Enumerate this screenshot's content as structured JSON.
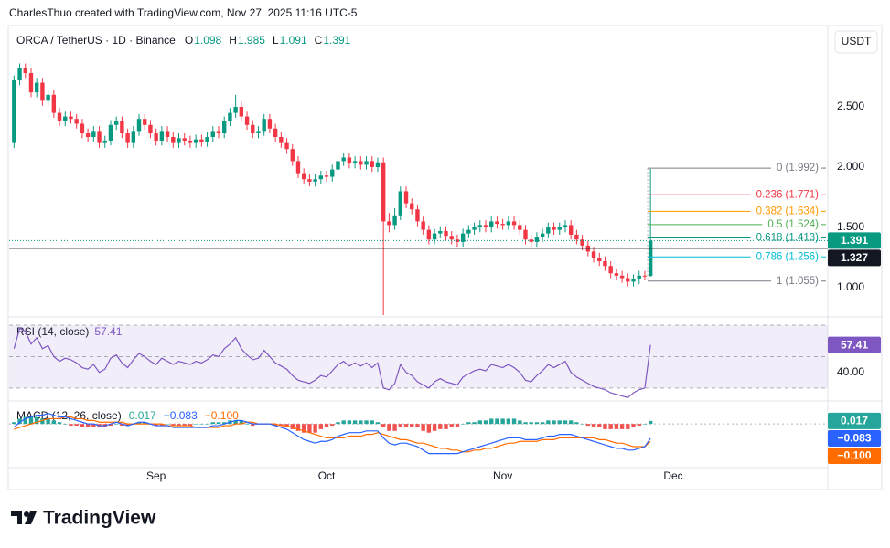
{
  "header": {
    "attribution": "CharlesThuo created with TradingView.com, Nov 27, 2025 11:16 UTC-5",
    "currency_button": "USDT"
  },
  "footer": {
    "brand": "TradingView"
  },
  "chart_data": [
    {
      "type": "candlestick",
      "title": "ORCA / TetherUS · 1D · Binance",
      "ohlc": [
        {
          "label": "O",
          "value": 1.098
        },
        {
          "label": "H",
          "value": 1.985
        },
        {
          "label": "L",
          "value": 1.091
        },
        {
          "label": "C",
          "value": 1.391
        }
      ],
      "up_color": "#089981",
      "down_color": "#f23645",
      "categories": [
        null,
        null,
        null,
        null,
        null,
        null,
        null,
        null,
        null,
        null,
        null,
        null,
        null,
        null,
        null,
        null,
        null,
        null,
        null,
        null,
        null,
        null,
        null,
        null,
        null,
        null,
        null,
        null,
        null,
        null,
        null,
        null,
        null,
        null,
        null,
        null,
        null,
        null,
        null,
        null,
        null,
        null,
        null,
        null,
        null,
        null,
        null,
        null,
        null,
        null,
        null,
        null,
        null,
        null,
        null,
        null,
        null,
        null,
        null,
        null,
        null,
        null,
        null,
        null,
        null,
        null,
        null,
        null,
        null,
        null,
        null,
        null,
        null,
        null,
        null,
        null,
        null,
        null,
        null,
        null,
        null,
        null,
        null,
        null,
        null,
        null,
        null,
        null,
        null,
        null,
        null,
        null,
        null,
        null,
        null,
        null,
        null,
        null,
        null,
        null,
        null,
        null,
        null,
        null,
        null,
        null,
        null,
        null,
        null,
        null,
        null,
        null,
        null
      ],
      "open": [
        2.2,
        2.72,
        2.82,
        2.78,
        2.62,
        2.7,
        2.55,
        2.6,
        2.45,
        2.38,
        2.42,
        2.4,
        2.36,
        2.28,
        2.25,
        2.3,
        2.2,
        2.22,
        2.35,
        2.38,
        2.28,
        2.2,
        2.3,
        2.4,
        2.35,
        2.28,
        2.22,
        2.3,
        2.25,
        2.2,
        2.24,
        2.22,
        2.2,
        2.23,
        2.21,
        2.25,
        2.3,
        2.28,
        2.38,
        2.45,
        2.5,
        2.42,
        2.35,
        2.28,
        2.3,
        2.4,
        2.32,
        2.25,
        2.2,
        2.15,
        2.05,
        1.95,
        1.9,
        1.88,
        1.9,
        1.93,
        1.92,
        1.98,
        2.05,
        2.08,
        2.03,
        2.05,
        2.02,
        2.05,
        2.0,
        2.04,
        1.55,
        1.52,
        1.6,
        1.8,
        1.7,
        1.65,
        1.55,
        1.48,
        1.4,
        1.45,
        1.47,
        1.43,
        1.4,
        1.38,
        1.45,
        1.48,
        1.5,
        1.52,
        1.5,
        1.55,
        1.53,
        1.52,
        1.55,
        1.52,
        1.48,
        1.4,
        1.38,
        1.42,
        1.45,
        1.5,
        1.48,
        1.5,
        1.52,
        1.44,
        1.4,
        1.35,
        1.3,
        1.25,
        1.22,
        1.18,
        1.12,
        1.1,
        1.08,
        1.05,
        1.07,
        1.1,
        1.098
      ],
      "high": [
        2.76,
        2.86,
        2.86,
        2.82,
        2.74,
        2.74,
        2.64,
        2.64,
        2.49,
        2.46,
        2.46,
        2.44,
        2.4,
        2.32,
        2.34,
        2.34,
        2.26,
        2.39,
        2.42,
        2.42,
        2.32,
        2.34,
        2.44,
        2.44,
        2.39,
        2.32,
        2.34,
        2.34,
        2.29,
        2.28,
        2.28,
        2.26,
        2.27,
        2.27,
        2.29,
        2.34,
        2.34,
        2.42,
        2.49,
        2.6,
        2.54,
        2.46,
        2.39,
        2.34,
        2.44,
        2.44,
        2.36,
        2.29,
        2.24,
        2.19,
        2.09,
        1.99,
        1.94,
        1.94,
        1.97,
        1.97,
        2.02,
        2.09,
        2.12,
        2.12,
        2.09,
        2.09,
        2.09,
        2.09,
        2.08,
        2.08,
        1.62,
        1.66,
        1.84,
        1.84,
        1.74,
        1.69,
        1.59,
        1.52,
        1.49,
        1.51,
        1.51,
        1.47,
        1.44,
        1.49,
        1.52,
        1.54,
        1.56,
        1.56,
        1.59,
        1.59,
        1.57,
        1.59,
        1.59,
        1.56,
        1.52,
        1.44,
        1.46,
        1.49,
        1.54,
        1.54,
        1.54,
        1.56,
        1.56,
        1.48,
        1.44,
        1.39,
        1.34,
        1.29,
        1.26,
        1.22,
        1.16,
        1.14,
        1.12,
        1.11,
        1.14,
        1.14,
        1.985
      ],
      "low": [
        2.16,
        2.68,
        2.74,
        2.58,
        2.58,
        2.51,
        2.51,
        2.41,
        2.34,
        2.34,
        2.36,
        2.32,
        2.24,
        2.21,
        2.21,
        2.16,
        2.16,
        2.18,
        2.31,
        2.24,
        2.16,
        2.16,
        2.26,
        2.31,
        2.24,
        2.18,
        2.18,
        2.21,
        2.16,
        2.16,
        2.18,
        2.16,
        2.16,
        2.17,
        2.17,
        2.21,
        2.24,
        2.24,
        2.34,
        2.41,
        2.38,
        2.31,
        2.24,
        2.24,
        2.26,
        2.28,
        2.21,
        2.16,
        2.11,
        2.01,
        1.91,
        1.86,
        1.84,
        1.84,
        1.86,
        1.88,
        1.88,
        1.94,
        2.01,
        1.99,
        1.99,
        1.98,
        1.98,
        1.96,
        1.96,
        0.75,
        1.46,
        1.48,
        1.56,
        1.66,
        1.61,
        1.51,
        1.44,
        1.36,
        1.36,
        1.41,
        1.39,
        1.36,
        1.34,
        1.34,
        1.41,
        1.44,
        1.46,
        1.46,
        1.46,
        1.49,
        1.48,
        1.48,
        1.48,
        1.44,
        1.36,
        1.34,
        1.34,
        1.38,
        1.41,
        1.44,
        1.44,
        1.46,
        1.4,
        1.36,
        1.31,
        1.26,
        1.21,
        1.18,
        1.14,
        1.08,
        1.06,
        1.04,
        1.01,
        1.01,
        1.03,
        1.06,
        1.091
      ],
      "close": [
        2.72,
        2.82,
        2.78,
        2.62,
        2.7,
        2.55,
        2.6,
        2.45,
        2.38,
        2.42,
        2.4,
        2.36,
        2.28,
        2.25,
        2.3,
        2.2,
        2.22,
        2.35,
        2.38,
        2.28,
        2.2,
        2.3,
        2.4,
        2.35,
        2.28,
        2.22,
        2.3,
        2.25,
        2.2,
        2.24,
        2.22,
        2.2,
        2.23,
        2.21,
        2.25,
        2.3,
        2.28,
        2.38,
        2.45,
        2.5,
        2.42,
        2.35,
        2.28,
        2.3,
        2.4,
        2.32,
        2.25,
        2.2,
        2.15,
        2.05,
        1.95,
        1.9,
        1.88,
        1.9,
        1.93,
        1.92,
        1.98,
        2.05,
        2.08,
        2.03,
        2.05,
        2.02,
        2.05,
        2.0,
        2.04,
        1.55,
        1.52,
        1.6,
        1.8,
        1.7,
        1.65,
        1.55,
        1.48,
        1.4,
        1.45,
        1.47,
        1.43,
        1.4,
        1.38,
        1.45,
        1.48,
        1.5,
        1.52,
        1.5,
        1.55,
        1.53,
        1.52,
        1.55,
        1.52,
        1.48,
        1.4,
        1.38,
        1.42,
        1.45,
        1.5,
        1.48,
        1.5,
        1.52,
        1.44,
        1.4,
        1.35,
        1.3,
        1.25,
        1.22,
        1.18,
        1.12,
        1.1,
        1.08,
        1.05,
        1.07,
        1.1,
        1.098,
        1.391
      ],
      "xlim": [
        -0.86,
        143.2
      ],
      "ylim": [
        0.773,
        3.159
      ],
      "yticks": [
        {
          "value": 1,
          "label": "1.000"
        },
        {
          "value": 1.5,
          "label": "1.500"
        },
        {
          "value": 2,
          "label": "2.000"
        },
        {
          "value": 2.5,
          "label": "2.500"
        }
      ],
      "price_lines": [
        {
          "value": 1.391,
          "color": "#089981",
          "style": "dotted"
        },
        {
          "value": 1.327,
          "color": "#131722",
          "style": "solid"
        }
      ],
      "fib_levels": [
        {
          "label": "0 (1.992)",
          "value": 1.992,
          "color": "#787b86"
        },
        {
          "label": "0.236 (1.771)",
          "value": 1.771,
          "color": "#f23645"
        },
        {
          "label": "0.382 (1.634)",
          "value": 1.634,
          "color": "#ff9800"
        },
        {
          "label": "0.5 (1.524)",
          "value": 1.524,
          "color": "#4caf50"
        },
        {
          "label": "0.618 (1.413)",
          "value": 1.413,
          "color": "#089981"
        },
        {
          "label": "0.786 (1.256)",
          "value": 1.256,
          "color": "#00bcd4"
        },
        {
          "label": "1 (1.055)",
          "value": 1.055,
          "color": "#787b86"
        }
      ]
    },
    {
      "type": "line",
      "title": "RSI (14, close)",
      "color": "#7e57c2",
      "values": [
        55,
        68,
        66,
        58,
        62,
        55,
        57,
        50,
        47,
        49,
        48,
        46,
        43,
        42,
        45,
        40,
        42,
        49,
        51,
        46,
        43,
        48,
        52,
        50,
        47,
        45,
        49,
        47,
        45,
        47,
        46,
        45,
        47,
        46,
        48,
        51,
        50,
        55,
        58,
        62,
        55,
        51,
        48,
        49,
        54,
        50,
        46,
        44,
        42,
        38,
        35,
        34,
        33,
        35,
        38,
        37,
        41,
        45,
        47,
        44,
        46,
        44,
        46,
        43,
        46,
        30,
        29,
        33,
        45,
        40,
        38,
        34,
        32,
        30,
        34,
        36,
        34,
        33,
        32,
        37,
        39,
        41,
        42,
        41,
        45,
        44,
        43,
        45,
        43,
        40,
        35,
        34,
        38,
        41,
        45,
        43,
        45,
        47,
        40,
        37,
        35,
        33,
        31,
        30,
        29,
        27,
        26,
        25,
        24,
        27,
        29,
        30,
        57.41
      ],
      "bands": [
        70,
        50,
        30
      ],
      "xlim": [
        -0.86,
        143.2
      ],
      "ylim": [
        23,
        72.3
      ],
      "yticks": [
        {
          "value": 40,
          "label": "40.00"
        }
      ]
    },
    {
      "type": "macd",
      "title": "MACD (12, 26, close)",
      "histogram": {
        "up_color": "#26a69a",
        "down_color": "#ef5350",
        "values": [
          0.01,
          0.03,
          0.04,
          0.04,
          0.04,
          0.03,
          0.03,
          0.02,
          0.01,
          0.0,
          -0.01,
          -0.01,
          -0.02,
          -0.02,
          -0.02,
          -0.02,
          -0.02,
          -0.01,
          0.0,
          -0.01,
          -0.01,
          0.0,
          0.01,
          0.01,
          0.0,
          -0.01,
          -0.01,
          0.0,
          -0.01,
          -0.01,
          -0.01,
          -0.01,
          0.0,
          0.0,
          0.0,
          0.01,
          0.01,
          0.01,
          0.02,
          0.02,
          0.02,
          0.0,
          -0.01,
          0.0,
          0.0,
          0.0,
          -0.01,
          -0.01,
          -0.02,
          -0.03,
          -0.04,
          -0.05,
          -0.05,
          -0.05,
          -0.03,
          -0.02,
          -0.01,
          0.01,
          0.02,
          0.02,
          0.02,
          0.02,
          0.02,
          0.02,
          0.01,
          -0.02,
          -0.04,
          -0.04,
          -0.02,
          -0.02,
          -0.02,
          -0.02,
          -0.04,
          -0.05,
          -0.04,
          -0.03,
          -0.03,
          -0.02,
          -0.02,
          0.0,
          0.01,
          0.01,
          0.02,
          0.02,
          0.03,
          0.03,
          0.03,
          0.03,
          0.03,
          0.02,
          0.01,
          0.01,
          0.01,
          0.01,
          0.02,
          0.02,
          0.02,
          0.02,
          0.02,
          0.01,
          0.0,
          -0.01,
          -0.02,
          -0.02,
          -0.03,
          -0.03,
          -0.03,
          -0.03,
          -0.03,
          -0.02,
          -0.01,
          0.0,
          0.017
        ]
      },
      "macd": {
        "color": "#2962ff",
        "value_label": "−0.083",
        "values": [
          -0.02,
          0.01,
          0.03,
          0.04,
          0.05,
          0.05,
          0.06,
          0.05,
          0.04,
          0.04,
          0.03,
          0.02,
          0.01,
          0.0,
          0.0,
          -0.01,
          -0.01,
          0.0,
          0.01,
          0.0,
          -0.01,
          0.0,
          0.01,
          0.01,
          0.0,
          -0.01,
          -0.01,
          -0.01,
          -0.02,
          -0.02,
          -0.02,
          -0.02,
          -0.02,
          -0.02,
          -0.02,
          -0.01,
          -0.01,
          0.0,
          0.01,
          0.02,
          0.02,
          0.01,
          0.0,
          0.0,
          0.0,
          0.0,
          -0.01,
          -0.02,
          -0.03,
          -0.05,
          -0.07,
          -0.09,
          -0.1,
          -0.11,
          -0.1,
          -0.1,
          -0.09,
          -0.07,
          -0.06,
          -0.05,
          -0.05,
          -0.05,
          -0.04,
          -0.04,
          -0.04,
          -0.08,
          -0.11,
          -0.12,
          -0.11,
          -0.11,
          -0.12,
          -0.13,
          -0.15,
          -0.17,
          -0.17,
          -0.17,
          -0.17,
          -0.17,
          -0.17,
          -0.16,
          -0.15,
          -0.14,
          -0.13,
          -0.12,
          -0.11,
          -0.1,
          -0.09,
          -0.08,
          -0.08,
          -0.08,
          -0.09,
          -0.09,
          -0.09,
          -0.08,
          -0.07,
          -0.07,
          -0.06,
          -0.06,
          -0.06,
          -0.07,
          -0.08,
          -0.09,
          -0.1,
          -0.11,
          -0.12,
          -0.13,
          -0.14,
          -0.14,
          -0.15,
          -0.15,
          -0.14,
          -0.13,
          -0.083
        ]
      },
      "signal": {
        "color": "#ff6d00",
        "value_label": "−0.100",
        "values": [
          -0.03,
          -0.02,
          -0.01,
          0.0,
          0.01,
          0.02,
          0.03,
          0.03,
          0.03,
          0.04,
          0.04,
          0.03,
          0.03,
          0.02,
          0.02,
          0.01,
          0.01,
          0.01,
          0.01,
          0.01,
          0.0,
          0.0,
          0.0,
          0.0,
          0.0,
          0.0,
          0.0,
          -0.01,
          -0.01,
          -0.01,
          -0.01,
          -0.01,
          -0.02,
          -0.02,
          -0.02,
          -0.02,
          -0.02,
          -0.01,
          -0.01,
          0.0,
          0.0,
          0.01,
          0.01,
          0.0,
          0.0,
          0.0,
          0.0,
          -0.01,
          -0.01,
          -0.02,
          -0.03,
          -0.04,
          -0.05,
          -0.06,
          -0.07,
          -0.08,
          -0.08,
          -0.08,
          -0.08,
          -0.07,
          -0.07,
          -0.07,
          -0.06,
          -0.06,
          -0.05,
          -0.06,
          -0.07,
          -0.08,
          -0.09,
          -0.09,
          -0.1,
          -0.11,
          -0.11,
          -0.12,
          -0.13,
          -0.14,
          -0.14,
          -0.15,
          -0.15,
          -0.16,
          -0.16,
          -0.15,
          -0.15,
          -0.14,
          -0.14,
          -0.13,
          -0.12,
          -0.11,
          -0.11,
          -0.1,
          -0.1,
          -0.1,
          -0.1,
          -0.09,
          -0.09,
          -0.09,
          -0.08,
          -0.08,
          -0.08,
          -0.08,
          -0.08,
          -0.08,
          -0.08,
          -0.09,
          -0.09,
          -0.1,
          -0.11,
          -0.11,
          -0.12,
          -0.13,
          -0.13,
          -0.13,
          -0.1
        ]
      },
      "xlim": [
        -0.86,
        143.2
      ],
      "ylim": [
        -0.24,
        0.116
      ],
      "xticks": [
        {
          "value": 25,
          "label": "Sep"
        },
        {
          "value": 55,
          "label": "Oct"
        },
        {
          "value": 86,
          "label": "Nov"
        },
        {
          "value": 116,
          "label": "Dec"
        }
      ]
    }
  ]
}
